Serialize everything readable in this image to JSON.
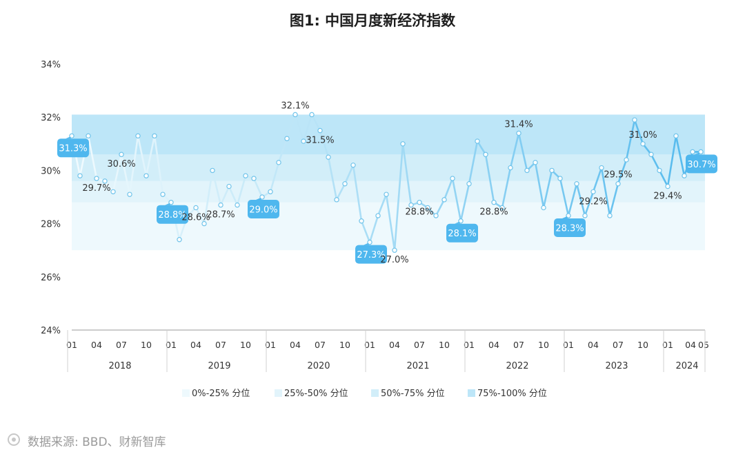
{
  "chart_data": {
    "type": "line",
    "title": "图1: 中国月度新经济指数",
    "y_ticks": [
      "34%",
      "32%",
      "30%",
      "28%",
      "26%",
      "24%"
    ],
    "ylim": [
      24,
      34
    ],
    "x": [
      "2018-01",
      "2018-02",
      "2018-03",
      "2018-04",
      "2018-05",
      "2018-06",
      "2018-07",
      "2018-08",
      "2018-09",
      "2018-10",
      "2018-11",
      "2018-12",
      "2019-01",
      "2019-02",
      "2019-03",
      "2019-04",
      "2019-05",
      "2019-06",
      "2019-07",
      "2019-08",
      "2019-09",
      "2019-10",
      "2019-11",
      "2019-12",
      "2020-01",
      "2020-02",
      "2020-03",
      "2020-04",
      "2020-05",
      "2020-06",
      "2020-07",
      "2020-08",
      "2020-09",
      "2020-10",
      "2020-11",
      "2020-12",
      "2021-01",
      "2021-02",
      "2021-03",
      "2021-04",
      "2021-05",
      "2021-06",
      "2021-07",
      "2021-08",
      "2021-09",
      "2021-10",
      "2021-11",
      "2021-12",
      "2022-01",
      "2022-02",
      "2022-03",
      "2022-04",
      "2022-05",
      "2022-06",
      "2022-07",
      "2022-08",
      "2022-09",
      "2022-10",
      "2022-11",
      "2022-12",
      "2023-01",
      "2023-02",
      "2023-03",
      "2023-04",
      "2023-05",
      "2023-06",
      "2023-07",
      "2023-08",
      "2023-09",
      "2023-10",
      "2023-11",
      "2023-12",
      "2024-01",
      "2024-02",
      "2024-03",
      "2024-04",
      "2024-05"
    ],
    "values": [
      31.3,
      29.8,
      31.3,
      29.7,
      29.6,
      29.2,
      30.6,
      29.1,
      31.3,
      29.8,
      31.3,
      29.1,
      28.8,
      27.4,
      28.3,
      28.6,
      28.0,
      30.0,
      28.7,
      29.4,
      28.7,
      29.8,
      29.7,
      29.0,
      29.2,
      30.3,
      31.2,
      32.1,
      31.1,
      32.1,
      31.5,
      30.5,
      28.9,
      29.5,
      30.2,
      28.1,
      27.3,
      28.3,
      29.1,
      27.0,
      31.0,
      28.7,
      28.8,
      28.6,
      28.3,
      28.9,
      29.7,
      28.1,
      29.5,
      31.1,
      30.6,
      28.8,
      28.6,
      30.1,
      31.4,
      30.0,
      30.3,
      28.6,
      30.0,
      29.7,
      28.3,
      29.5,
      28.3,
      29.2,
      30.1,
      28.3,
      29.5,
      30.4,
      31.9,
      31.0,
      30.6,
      30.0,
      29.4,
      31.3,
      29.8,
      30.7,
      30.7
    ],
    "point_labels": [
      {
        "month": "2018-01",
        "text": "31.3%",
        "style": "callout"
      },
      {
        "month": "2018-04",
        "text": "29.7%",
        "style": "plain"
      },
      {
        "month": "2018-07",
        "text": "30.6%",
        "style": "plain"
      },
      {
        "month": "2019-01",
        "text": "28.8%",
        "style": "callout"
      },
      {
        "month": "2019-04",
        "text": "28.6%",
        "style": "plain"
      },
      {
        "month": "2019-07",
        "text": "28.7%",
        "style": "plain"
      },
      {
        "month": "2019-12",
        "text": "29.0%",
        "style": "callout"
      },
      {
        "month": "2020-04",
        "text": "32.1%",
        "style": "plain"
      },
      {
        "month": "2020-07",
        "text": "31.5%",
        "style": "plain"
      },
      {
        "month": "2021-01",
        "text": "27.3%",
        "style": "callout"
      },
      {
        "month": "2021-04",
        "text": "27.0%",
        "style": "plain"
      },
      {
        "month": "2021-07",
        "text": "28.8%",
        "style": "plain"
      },
      {
        "month": "2021-12",
        "text": "28.1%",
        "style": "callout"
      },
      {
        "month": "2022-04",
        "text": "28.8%",
        "style": "plain"
      },
      {
        "month": "2022-07",
        "text": "31.4%",
        "style": "plain"
      },
      {
        "month": "2023-01",
        "text": "28.3%",
        "style": "callout"
      },
      {
        "month": "2023-04",
        "text": "29.2%",
        "style": "plain"
      },
      {
        "month": "2023-07",
        "text": "29.5%",
        "style": "plain"
      },
      {
        "month": "2023-10",
        "text": "31.0%",
        "style": "plain"
      },
      {
        "month": "2024-01",
        "text": "29.4%",
        "style": "plain"
      },
      {
        "month": "2024-05",
        "text": "30.7%",
        "style": "callout"
      }
    ],
    "bands": [
      {
        "name": "0%-25% 分位",
        "from": 27.0,
        "to": 28.8,
        "color": "#eef9fd"
      },
      {
        "name": "25%-50% 分位",
        "from": 28.8,
        "to": 29.6,
        "color": "#e2f4fb"
      },
      {
        "name": "50%-75% 分位",
        "from": 29.6,
        "to": 30.6,
        "color": "#d2eef9"
      },
      {
        "name": "75%-100% 分位",
        "from": 30.6,
        "to": 32.1,
        "color": "#bde6f8"
      }
    ],
    "month_ticks": [
      "01",
      "04",
      "07",
      "10"
    ],
    "last_month_tick": "05",
    "years": [
      "2018",
      "2019",
      "2020",
      "2021",
      "2022",
      "2023",
      "2024"
    ],
    "legend_position": "bottom",
    "colors": {
      "line_start": "#f2fbfe",
      "line_end": "#52b9ed",
      "callout": "#4fb7ee",
      "marker_stroke": "#6fc3ea",
      "axis": "#9a9a9a"
    }
  },
  "source": "数据来源: BBD、财新智库"
}
